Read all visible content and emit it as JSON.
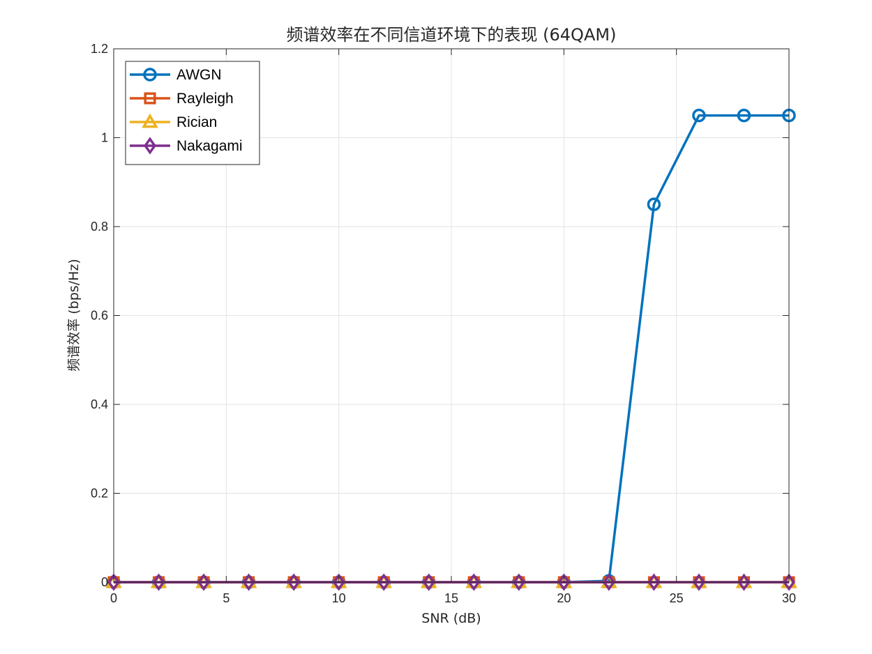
{
  "chart_data": {
    "type": "line",
    "title": "频谱效率在不同信道环境下的表现 (64QAM)",
    "xlabel": "SNR (dB)",
    "ylabel": "频谱效率 (bps/Hz)",
    "xlim": [
      0,
      30
    ],
    "ylim": [
      0,
      1.2
    ],
    "xticks": [
      0,
      5,
      10,
      15,
      20,
      25,
      30
    ],
    "xtick_labels": [
      "0",
      "5",
      "10",
      "15",
      "20",
      "25",
      "30"
    ],
    "yticks": [
      0,
      0.2,
      0.4,
      0.6,
      0.8,
      1,
      1.2
    ],
    "ytick_labels": [
      "0",
      "0.2",
      "0.4",
      "0.6",
      "0.8",
      "1",
      "1.2"
    ],
    "grid": true,
    "legend_position": "top-left",
    "x": [
      0,
      2,
      4,
      6,
      8,
      10,
      12,
      14,
      16,
      18,
      20,
      22,
      24,
      26,
      28,
      30
    ],
    "series": [
      {
        "name": "AWGN",
        "color": "#0072BD",
        "marker": "circle",
        "values": [
          0,
          0,
          0,
          0,
          0,
          0,
          0,
          0,
          0,
          0,
          0,
          0.003,
          0.85,
          1.05,
          1.05,
          1.05
        ]
      },
      {
        "name": "Rayleigh",
        "color": "#D95319",
        "marker": "square",
        "values": [
          0,
          0,
          0,
          0,
          0,
          0,
          0,
          0,
          0,
          0,
          0,
          0,
          0,
          0,
          0,
          0
        ]
      },
      {
        "name": "Rician",
        "color": "#EDB120",
        "marker": "triangle",
        "values": [
          0,
          0,
          0,
          0,
          0,
          0,
          0,
          0,
          0,
          0,
          0,
          0,
          0,
          0,
          0,
          0
        ]
      },
      {
        "name": "Nakagami",
        "color": "#7E2F8E",
        "marker": "diamond",
        "values": [
          0,
          0,
          0,
          0,
          0,
          0,
          0,
          0,
          0,
          0,
          0,
          0,
          0,
          0,
          0,
          0
        ]
      }
    ]
  }
}
